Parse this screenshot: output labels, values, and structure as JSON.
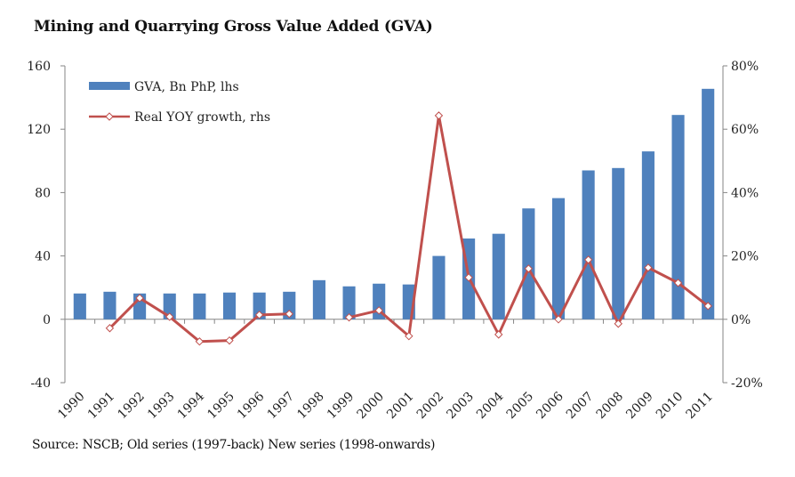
{
  "chart_data": {
    "type": "bar",
    "title": "Mining and Quarrying Gross Value Added (GVA)",
    "source": "Source: NSCB; Old series (1997-back) New series (1998-onwards)",
    "categories": [
      "1990",
      "1991",
      "1992",
      "1993",
      "1994",
      "1995",
      "1996",
      "1997",
      "1998",
      "1999",
      "2000",
      "2001",
      "2002",
      "2003",
      "2004",
      "2005",
      "2006",
      "2007",
      "2008",
      "2009",
      "2010",
      "2011"
    ],
    "series": [
      {
        "name": "GVA, Bn PhP, lhs",
        "type": "bar",
        "axis": "left",
        "color": "#4f81bd",
        "values": [
          16.3,
          17.4,
          16.3,
          16.3,
          16.3,
          16.9,
          16.9,
          17.4,
          24.7,
          20.8,
          22.5,
          22.0,
          40.0,
          51.0,
          54.0,
          70.0,
          76.5,
          94.0,
          95.5,
          106.0,
          129.0,
          145.5
        ]
      },
      {
        "name": "Real YOY growth, rhs",
        "type": "line",
        "axis": "right",
        "color": "#c0504d",
        "values": [
          null,
          -2.8,
          6.7,
          0.8,
          -7.0,
          -6.7,
          1.4,
          1.7,
          null,
          0.6,
          2.8,
          -5.3,
          64.3,
          13.2,
          -4.8,
          16.0,
          0.0,
          18.8,
          -1.4,
          16.3,
          11.5,
          4.2
        ]
      }
    ],
    "left_axis": {
      "min": -40,
      "max": 160,
      "ticks": [
        -40,
        0,
        40,
        80,
        120,
        160
      ],
      "tick_labels": [
        "-40",
        "0",
        "40",
        "80",
        "120",
        "160"
      ]
    },
    "right_axis": {
      "min": -20,
      "max": 80,
      "ticks": [
        -20,
        0,
        20,
        40,
        60,
        80
      ],
      "tick_labels": [
        "-20%",
        "0%",
        "20%",
        "40%",
        "60%",
        "80%"
      ]
    },
    "xlabel": "",
    "ylabel": "",
    "grid": false,
    "legend": {
      "placement": "top-left",
      "entries": [
        "GVA, Bn PhP, lhs",
        "Real YOY growth, rhs"
      ]
    }
  }
}
